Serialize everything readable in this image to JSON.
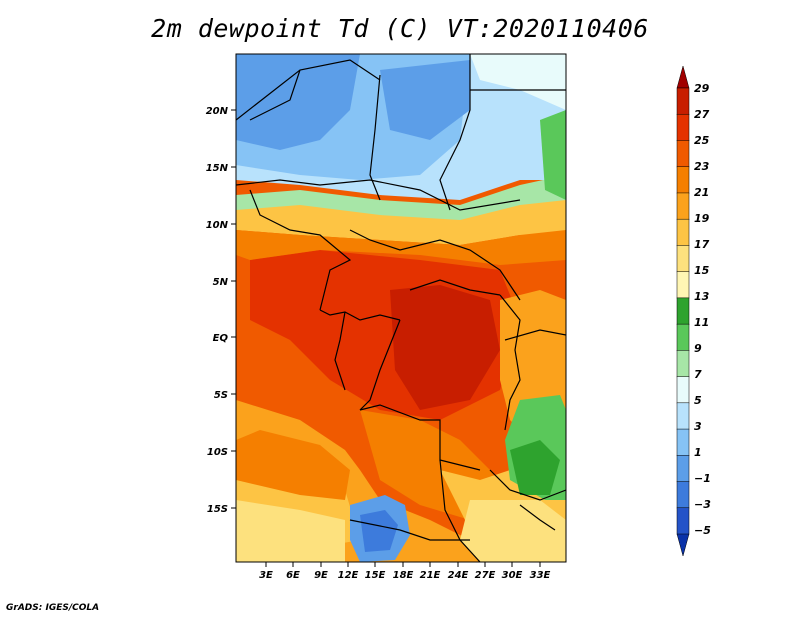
{
  "title": "2m dewpoint Td (C) VT:2020110406",
  "credit": "GrADS: IGES/COLA",
  "map": {
    "lat_labels": [
      "20N",
      "15N",
      "10N",
      "5N",
      "EQ",
      "5S",
      "10S",
      "15S"
    ],
    "lon_labels": [
      "3E",
      "6E",
      "9E",
      "12E",
      "15E",
      "18E",
      "21E",
      "24E",
      "27E",
      "30E",
      "33E"
    ]
  },
  "colorbar": {
    "labels": [
      "29",
      "27",
      "25",
      "23",
      "21",
      "19",
      "17",
      "15",
      "13",
      "11",
      "9",
      "7",
      "5",
      "3",
      "1",
      "−1",
      "−3",
      "−5"
    ],
    "colors": [
      "#a00000",
      "#c81e00",
      "#e43200",
      "#f05a00",
      "#f57f00",
      "#fba21c",
      "#fdc444",
      "#fde17e",
      "#fff6b4",
      "#2ea32e",
      "#5ac85a",
      "#a7e6a7",
      "#e8fbfb",
      "#b8e2fc",
      "#86c3f5",
      "#5c9ee8",
      "#3d7bdc",
      "#2453c8",
      "#0a32a8"
    ]
  }
}
